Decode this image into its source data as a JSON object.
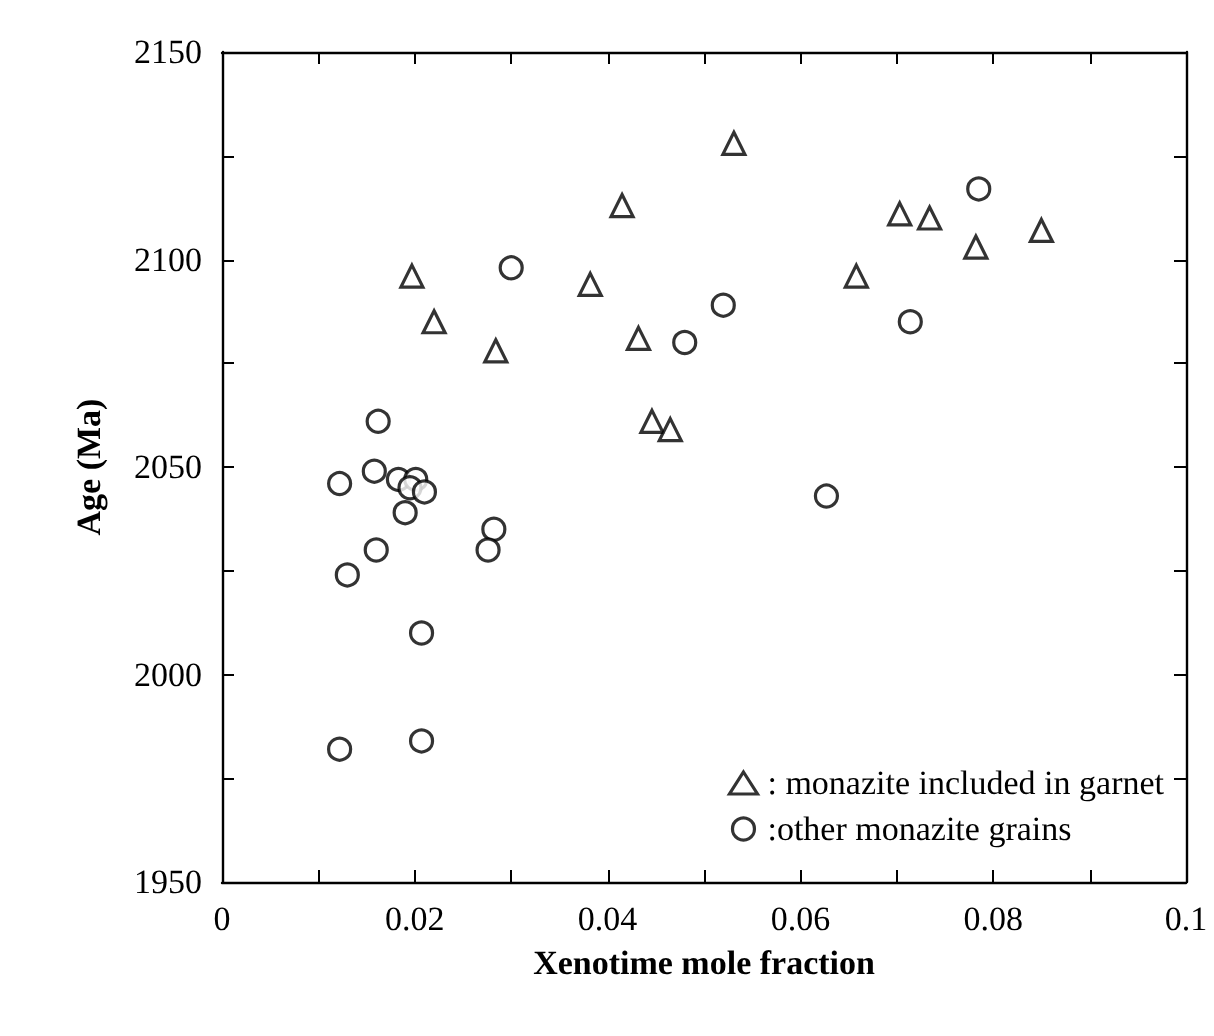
{
  "chart_data": {
    "type": "scatter",
    "xlabel": "Xenotime mole fraction",
    "ylabel": "Age (Ma)",
    "xlim": [
      0,
      0.1
    ],
    "ylim": [
      1950,
      2150
    ],
    "xticks": [
      0,
      {
        "value": 0.01,
        "label": null
      },
      0.02,
      {
        "value": 0.03,
        "label": null
      },
      0.04,
      {
        "value": 0.05,
        "label": null
      },
      0.06,
      {
        "value": 0.07,
        "label": null
      },
      0.08,
      {
        "value": 0.09,
        "label": null
      },
      0.1
    ],
    "yticks": [
      1950,
      {
        "value": 1975,
        "label": null
      },
      2000,
      {
        "value": 2025,
        "label": null
      },
      2050,
      {
        "value": 2075,
        "label": null
      },
      2100,
      {
        "value": 2125,
        "label": null
      },
      2150
    ],
    "grid": false,
    "legend": "bottom right",
    "series": [
      {
        "name": ": monazite included in garnet",
        "color": "#000000",
        "marker": "triangle",
        "x": [
          0.0197,
          0.022,
          0.0284,
          0.0382,
          0.0415,
          0.0432,
          0.0446,
          0.0465,
          0.0531,
          0.0658,
          0.0703,
          0.0734,
          0.0782,
          0.085
        ],
        "values": [
          2096,
          2085,
          2078,
          2094,
          2113,
          2081,
          2061,
          2059,
          2128,
          2096,
          2111,
          2110,
          2103,
          2107
        ]
      },
      {
        "name": ":other monazite grains",
        "color": "#000000",
        "marker": "circle",
        "x": [
          0.0122,
          0.0207,
          0.0207,
          0.0122,
          0.013,
          0.016,
          0.0158,
          0.0162,
          0.0183,
          0.0201,
          0.0195,
          0.021,
          0.019,
          0.0282,
          0.0276,
          0.03,
          0.048,
          0.052,
          0.0714,
          0.0785,
          0.0627
        ],
        "values": [
          1982,
          1984,
          2010,
          2046,
          2024,
          2030,
          2049,
          2061,
          2047,
          2047,
          2045,
          2044,
          2039,
          2035,
          2030,
          2098,
          2080,
          2089,
          2085,
          2117,
          2043
        ]
      }
    ]
  }
}
